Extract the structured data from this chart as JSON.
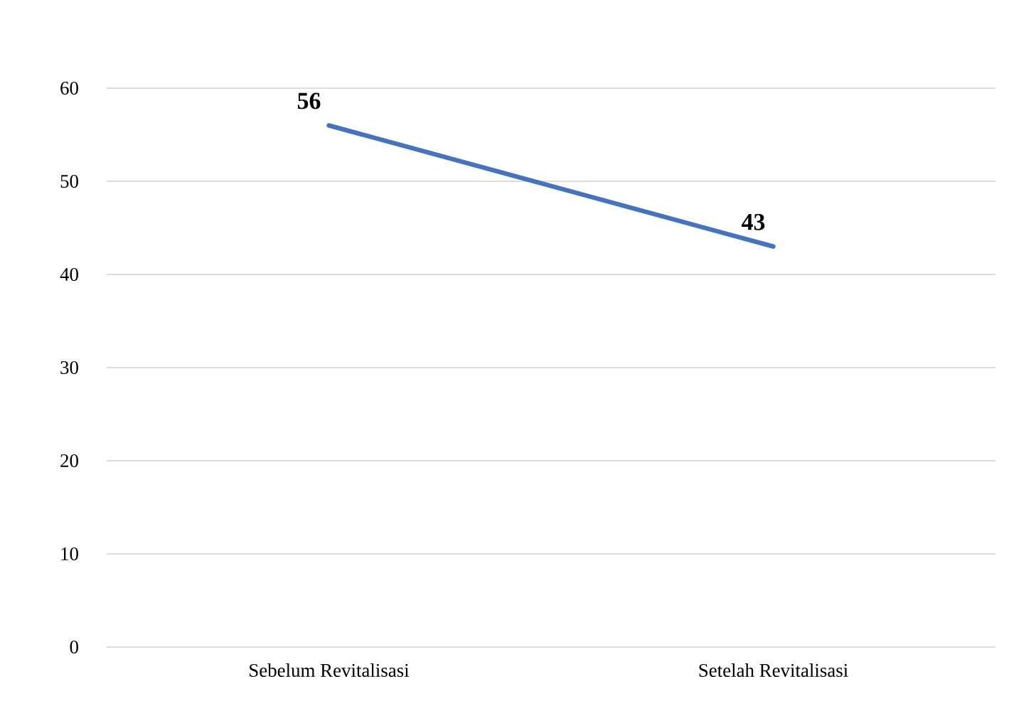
{
  "chart_data": {
    "type": "line",
    "categories": [
      "Sebelum Revitalisasi",
      "Setelah Revitalisasi"
    ],
    "values": [
      56,
      43
    ],
    "value_labels": [
      "56",
      "43"
    ],
    "color": "#4472c4",
    "ylim": [
      0,
      60
    ],
    "yticks": [
      0,
      10,
      20,
      30,
      40,
      50,
      60
    ],
    "grid": "y",
    "marker": "none",
    "line_style": "solid"
  }
}
